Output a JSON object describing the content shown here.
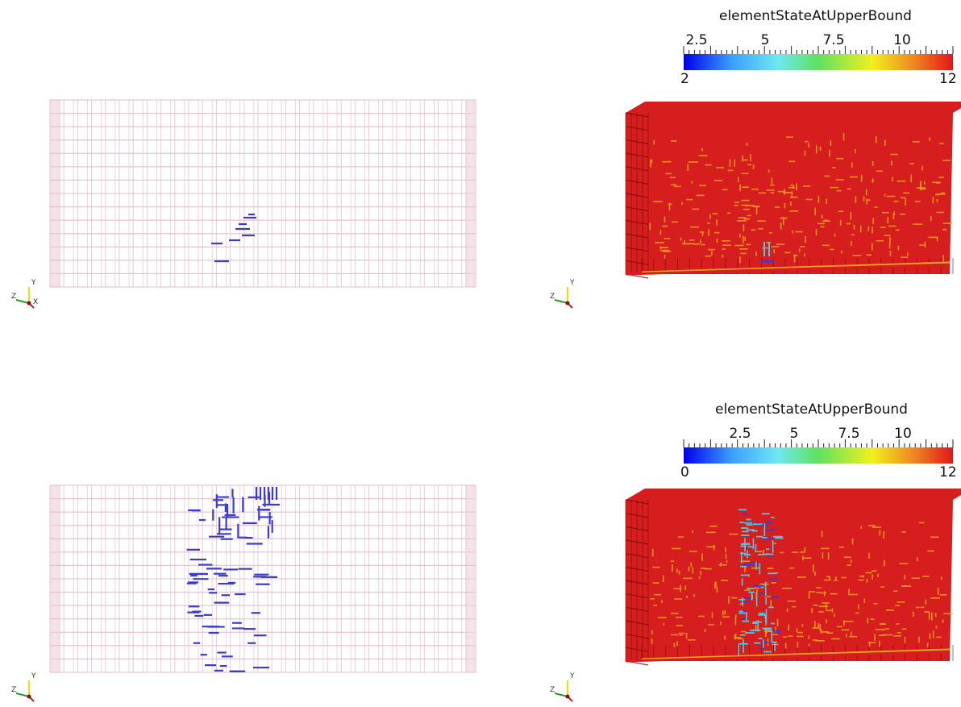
{
  "panels": [
    {
      "id": "top-left",
      "mesh": "pink",
      "highlight": "sparse"
    },
    {
      "id": "top-right",
      "mesh": "red",
      "highlight": "sparse"
    },
    {
      "id": "bottom-left",
      "mesh": "pink",
      "highlight": "band"
    },
    {
      "id": "bottom-right",
      "mesh": "red",
      "highlight": "band"
    }
  ],
  "legends": [
    {
      "title": "elementStateAtUpperBound",
      "ticks": [
        "2.5",
        "5",
        "7.5",
        "10"
      ],
      "min_label": "2",
      "max_label": "12",
      "range": [
        2,
        12
      ],
      "colormap": "jet"
    },
    {
      "title": "elementStateAtUpperBound",
      "ticks": [
        "2.5",
        "5",
        "7.5",
        "10"
      ],
      "min_label": "0",
      "max_label": "12",
      "range": [
        0,
        12
      ],
      "colormap": "jet"
    }
  ],
  "axes": {
    "y": "Y",
    "z": "Z",
    "x": "X"
  },
  "colors": {
    "mesh_pink": "#e2b4c3",
    "mesh_red": "#d71e1e",
    "highlight_blue": "#3b3bd0",
    "highlight_orange": "#f0a61c",
    "highlight_cyan": "#49c9e6",
    "axis_y": "#e6e600",
    "axis_z": "#2a9a2a",
    "axis_x": "#b82020"
  }
}
